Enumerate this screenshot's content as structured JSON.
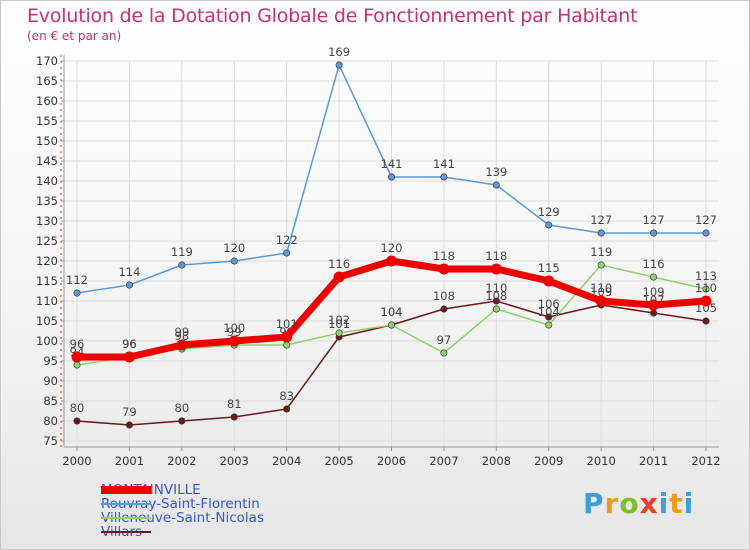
{
  "chart_data": {
    "type": "line",
    "title": "Evolution de la Dotation Globale de Fonctionnement par Habitant",
    "subtitle": "(en € et par an)",
    "x": [
      "2000",
      "2001",
      "2002",
      "2003",
      "2004",
      "2005",
      "2006",
      "2007",
      "2008",
      "2009",
      "2010",
      "2011",
      "2012"
    ],
    "yticks": [
      75,
      80,
      85,
      90,
      95,
      100,
      105,
      110,
      115,
      120,
      125,
      130,
      135,
      140,
      145,
      150,
      155,
      160,
      165,
      170
    ],
    "ylim": [
      75,
      170
    ],
    "xlabel": "",
    "ylabel": "",
    "series": [
      {
        "name": "MONTAINVILLE",
        "color": "#ee0000",
        "values": [
          96,
          96,
          99,
          100,
          101,
          116,
          120,
          118,
          118,
          115,
          110,
          109,
          110
        ],
        "labels": [
          "96",
          "96",
          "99",
          "100",
          "101",
          "116",
          "120",
          "118",
          "118",
          "115",
          "110",
          "109",
          "110"
        ]
      },
      {
        "name": "Rouvray-Saint-Florentin",
        "color": "#5b9bd5",
        "values": [
          112,
          114,
          119,
          120,
          122,
          169,
          141,
          141,
          139,
          129,
          127,
          127,
          127
        ],
        "labels": [
          "112",
          "114",
          "119",
          "120",
          "122",
          "169",
          "141",
          "141",
          "139",
          "129",
          "127",
          "127",
          "127"
        ]
      },
      {
        "name": "Villeneuve-Saint-Nicolas",
        "color": "#8fd16a",
        "values": [
          94,
          96,
          98,
          99,
          99,
          102,
          104,
          97,
          108,
          104,
          119,
          116,
          113
        ],
        "labels": [
          "94",
          "96",
          "98",
          "99",
          "99",
          "102",
          "104",
          "97",
          "108",
          "104",
          "119",
          "116",
          "113"
        ]
      },
      {
        "name": "Villars",
        "color": "#6b1a1a",
        "values": [
          80,
          79,
          80,
          81,
          83,
          101,
          104,
          108,
          110,
          106,
          109,
          107,
          105
        ],
        "labels": [
          "80",
          "79",
          "80",
          "81",
          "83",
          "101",
          "104",
          "108",
          "110",
          "106",
          "109",
          "107",
          "105"
        ]
      }
    ]
  },
  "brand": {
    "p": "P",
    "r": "r",
    "o": "o",
    "x": "x",
    "i": "i",
    "t": "t",
    "i2": "i"
  }
}
